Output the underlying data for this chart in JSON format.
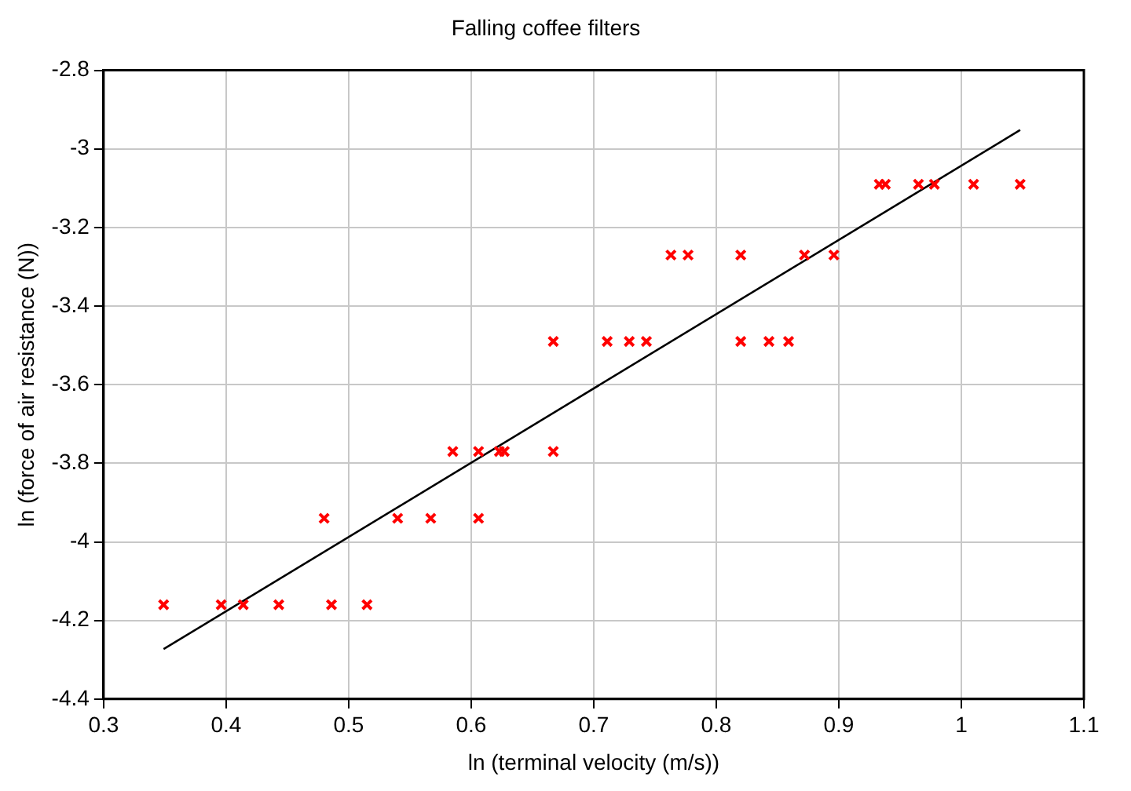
{
  "chart_data": {
    "type": "scatter",
    "title": "Falling coffee filters",
    "xlabel": "ln (terminal velocity (m/s))",
    "ylabel": "ln (force of air resistance (N))",
    "xlim": [
      0.3,
      1.1
    ],
    "xticks": [
      0.3,
      0.4,
      0.5,
      0.6,
      0.7,
      0.8,
      0.9,
      1,
      1.1
    ],
    "ylim": [
      -4.4,
      -2.8
    ],
    "yticks": [
      -4.4,
      -4.2,
      -4,
      -3.8,
      -3.6,
      -3.4,
      -3.2,
      -3,
      -2.8
    ],
    "grid": true,
    "legend": false,
    "series": [
      {
        "color": "#ff0000",
        "marker": "cross",
        "x": [
          0.349,
          0.396,
          0.414,
          0.443,
          0.486,
          0.515,
          0.48,
          0.54,
          0.567,
          0.606,
          0.585,
          0.606,
          0.623,
          0.627,
          0.667,
          0.667,
          0.711,
          0.729,
          0.743,
          0.82,
          0.843,
          0.859,
          0.763,
          0.777,
          0.82,
          0.872,
          0.896,
          0.933,
          0.938,
          0.965,
          0.978,
          1.01,
          1.048
        ],
        "values": [
          -4.16,
          -4.16,
          -4.16,
          -4.16,
          -4.16,
          -4.16,
          -3.94,
          -3.94,
          -3.94,
          -3.94,
          -3.77,
          -3.77,
          -3.77,
          -3.77,
          -3.77,
          -3.49,
          -3.49,
          -3.49,
          -3.49,
          -3.49,
          -3.49,
          -3.49,
          -3.27,
          -3.27,
          -3.27,
          -3.27,
          -3.27,
          -3.09,
          -3.09,
          -3.09,
          -3.09,
          -3.09,
          -3.09
        ]
      },
      {
        "type": "line",
        "color": "#000000",
        "marker": "none",
        "x": [
          0.349,
          1.048
        ],
        "values": [
          -4.273,
          -2.952
        ]
      }
    ]
  }
}
